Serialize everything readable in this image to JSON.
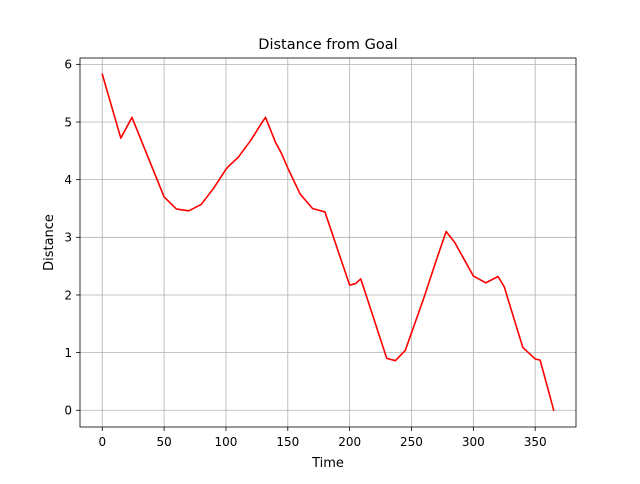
{
  "chart_data": {
    "type": "line",
    "title": "Distance from Goal",
    "xlabel": "Time",
    "ylabel": "Distance",
    "xlim": [
      -18,
      383
    ],
    "ylim": [
      -0.29,
      6.11
    ],
    "xticks": [
      0,
      50,
      100,
      150,
      200,
      250,
      300,
      350
    ],
    "yticks": [
      0,
      1,
      2,
      3,
      4,
      5,
      6
    ],
    "grid": true,
    "legend": "none",
    "series": [
      {
        "color": "#ff0000",
        "x": [
          0,
          15,
          24,
          50,
          60,
          70,
          80,
          90,
          100,
          102,
          110,
          120,
          130,
          132,
          140,
          145,
          150,
          160,
          170,
          180,
          200,
          205,
          209,
          230,
          237,
          245,
          260,
          270,
          278,
          285,
          300,
          310,
          320,
          325,
          340,
          350,
          354,
          365
        ],
        "y": [
          5.83,
          4.72,
          5.08,
          3.7,
          3.49,
          3.46,
          3.57,
          3.85,
          4.18,
          4.23,
          4.39,
          4.68,
          5.02,
          5.08,
          4.65,
          4.45,
          4.2,
          3.75,
          3.5,
          3.44,
          2.17,
          2.2,
          2.28,
          0.9,
          0.86,
          1.04,
          1.95,
          2.6,
          3.1,
          2.91,
          2.33,
          2.21,
          2.32,
          2.14,
          1.09,
          0.89,
          0.87,
          0.0
        ]
      }
    ]
  }
}
